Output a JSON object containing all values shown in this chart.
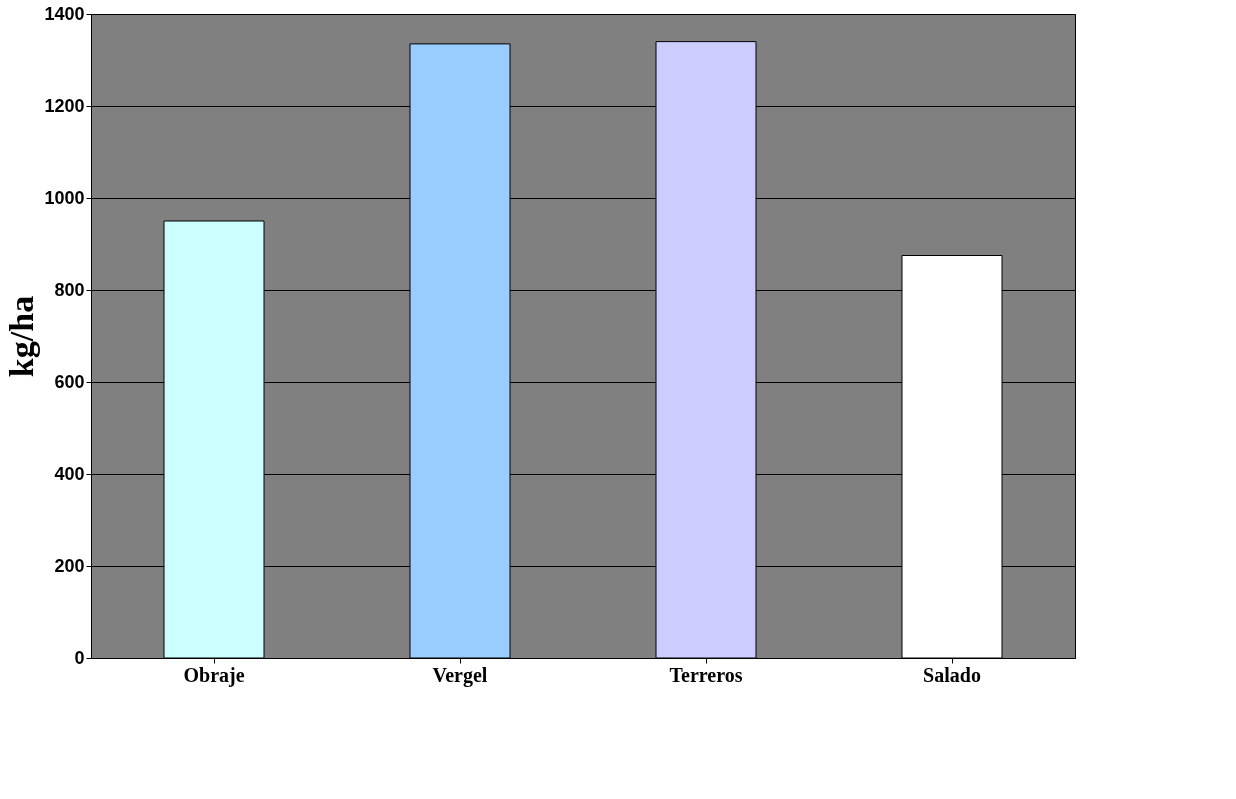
{
  "chart_data": {
    "type": "bar",
    "ylabel": "kg/ha",
    "categories": [
      "Obraje",
      "Vergel",
      "Terreros",
      "Salado"
    ],
    "values": [
      950,
      1335,
      1340,
      875
    ],
    "colors": [
      "#ccffff",
      "#99ccff",
      "#ccccff",
      "#ffffff"
    ],
    "ylim": [
      0,
      1400
    ],
    "yticks": [
      0,
      200,
      400,
      600,
      800,
      1000,
      1200,
      1400
    ],
    "grid": "y"
  }
}
